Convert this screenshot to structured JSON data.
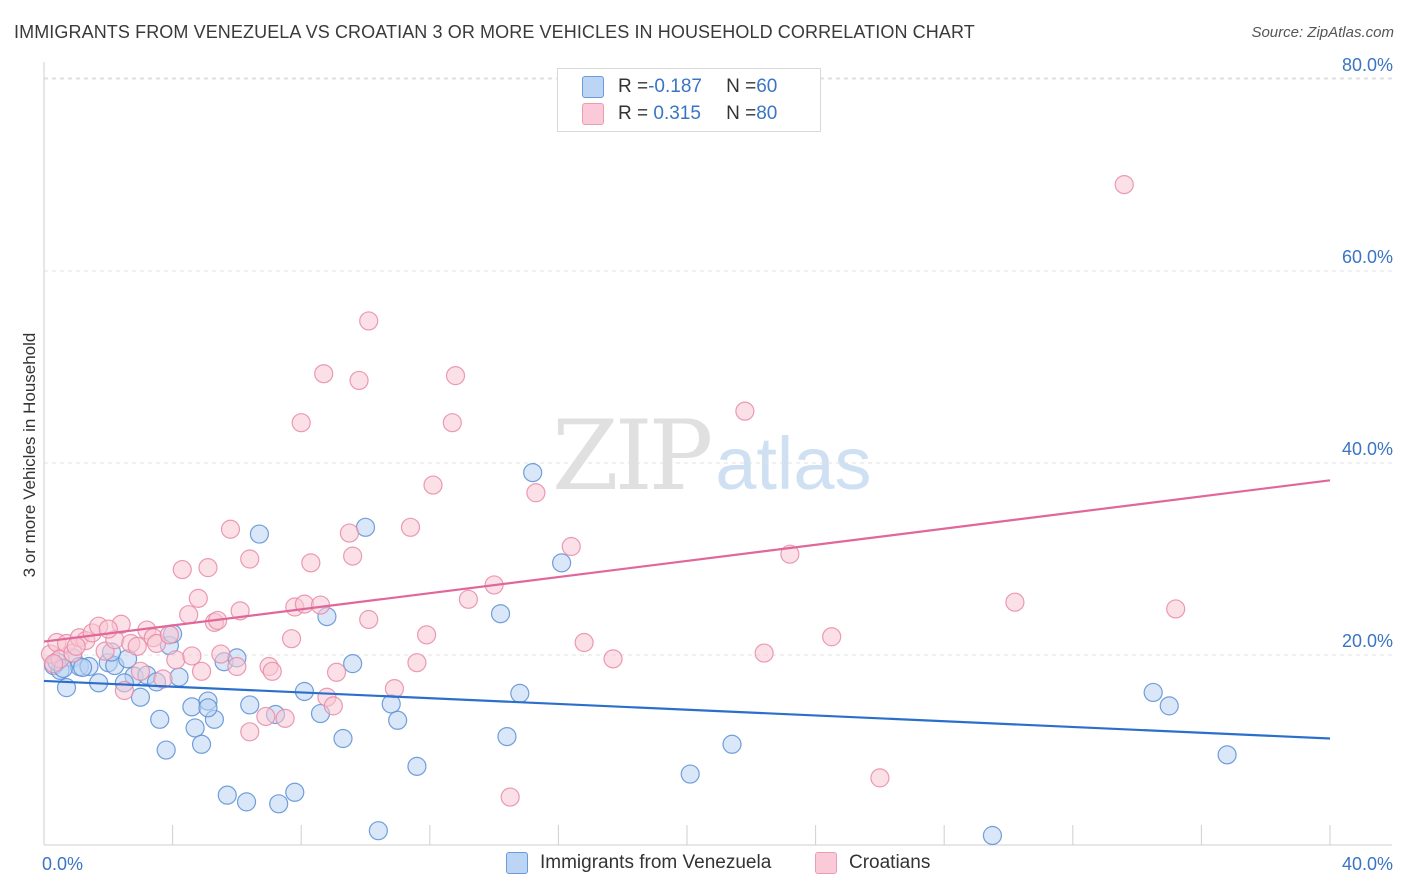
{
  "title": "IMMIGRANTS FROM VENEZUELA VS CROATIAN 3 OR MORE VEHICLES IN HOUSEHOLD CORRELATION CHART",
  "source": "Source: ZipAtlas.com",
  "watermark": {
    "zip": "ZIP",
    "atlas": "atlas"
  },
  "legend": [
    {
      "r_label": "R = ",
      "r_value": "-0.187",
      "n_label": "N = ",
      "n_value": "60",
      "color": "#a9c8f0"
    },
    {
      "r_label": "R = ",
      "r_value": " 0.315",
      "n_label": "N = ",
      "n_value": "80",
      "color": "#f6b9cb"
    }
  ],
  "colors": {
    "venezuela_fill": "#b9d3f3",
    "venezuela_stroke": "#5b8fd3",
    "venezuela_line": "#2b6fcc",
    "croatian_fill": "#f8c6d4",
    "croatian_stroke": "#e889a6",
    "croatian_line": "#e0679a",
    "tick_label": "#3a74c4",
    "grid": "#e0e0e0"
  },
  "chart_data": {
    "type": "scatter",
    "title": "IMMIGRANTS FROM VENEZUELA VS CROATIAN 3 OR MORE VEHICLES IN HOUSEHOLD CORRELATION CHART",
    "xlabel": "",
    "ylabel": "3 or more Vehicles in Household",
    "xlim": [
      0,
      40
    ],
    "ylim": [
      0,
      82
    ],
    "x_tick_labels": [
      {
        "value": 0,
        "label": "0.0%"
      },
      {
        "value": 40,
        "label": "40.0%"
      }
    ],
    "y_tick_labels": [
      {
        "value": 20,
        "label": "20.0%"
      },
      {
        "value": 40,
        "label": "40.0%"
      },
      {
        "value": 60,
        "label": "60.0%"
      },
      {
        "value": 80,
        "label": "80.0%"
      }
    ],
    "grid": true,
    "legend_position": "top-center",
    "series": [
      {
        "name": "Immigrants from Venezuela",
        "trend": [
          [
            0,
            17.3
          ],
          [
            40,
            11.3
          ]
        ],
        "points": [
          [
            0.3,
            18.9
          ],
          [
            0.5,
            18.4
          ],
          [
            0.7,
            16.6
          ],
          [
            0.9,
            19.7
          ],
          [
            1.1,
            18.8
          ],
          [
            1.4,
            18.8
          ],
          [
            1.7,
            17.1
          ],
          [
            2.0,
            19.2
          ],
          [
            2.2,
            18.9
          ],
          [
            2.6,
            19.6
          ],
          [
            2.8,
            17.8
          ],
          [
            3.0,
            15.6
          ],
          [
            3.2,
            17.9
          ],
          [
            3.5,
            17.2
          ],
          [
            3.6,
            13.3
          ],
          [
            3.8,
            10.1
          ],
          [
            3.9,
            21.0
          ],
          [
            4.0,
            22.2
          ],
          [
            4.2,
            17.7
          ],
          [
            4.6,
            14.6
          ],
          [
            4.7,
            12.4
          ],
          [
            4.9,
            10.7
          ],
          [
            5.1,
            15.2
          ],
          [
            5.3,
            13.3
          ],
          [
            5.6,
            19.3
          ],
          [
            5.7,
            5.4
          ],
          [
            6.0,
            19.7
          ],
          [
            6.3,
            4.7
          ],
          [
            6.4,
            14.8
          ],
          [
            6.7,
            32.6
          ],
          [
            7.2,
            13.8
          ],
          [
            7.3,
            4.5
          ],
          [
            7.8,
            5.7
          ],
          [
            8.1,
            16.2
          ],
          [
            8.6,
            13.9
          ],
          [
            8.8,
            24.0
          ],
          [
            9.3,
            11.3
          ],
          [
            9.6,
            19.1
          ],
          [
            10.0,
            33.3
          ],
          [
            10.4,
            1.7
          ],
          [
            10.8,
            14.9
          ],
          [
            11.0,
            13.2
          ],
          [
            11.6,
            8.4
          ],
          [
            14.2,
            24.3
          ],
          [
            14.4,
            11.5
          ],
          [
            14.8,
            16.0
          ],
          [
            15.2,
            39.0
          ],
          [
            16.1,
            29.6
          ],
          [
            20.1,
            7.6
          ],
          [
            21.4,
            10.7
          ],
          [
            29.5,
            1.2
          ],
          [
            34.5,
            16.1
          ],
          [
            35.0,
            14.7
          ],
          [
            36.8,
            9.6
          ],
          [
            2.1,
            20.3
          ],
          [
            0.4,
            19.3
          ],
          [
            1.2,
            18.7
          ],
          [
            2.5,
            17.1
          ],
          [
            0.6,
            18.6
          ],
          [
            5.1,
            14.5
          ]
        ]
      },
      {
        "name": "Croatians",
        "trend": [
          [
            0,
            21.4
          ],
          [
            40,
            38.2
          ]
        ],
        "points": [
          [
            0.2,
            20.1
          ],
          [
            0.4,
            21.3
          ],
          [
            0.5,
            19.6
          ],
          [
            0.7,
            21.2
          ],
          [
            0.9,
            20.2
          ],
          [
            1.1,
            21.8
          ],
          [
            1.3,
            21.5
          ],
          [
            1.5,
            22.3
          ],
          [
            1.7,
            23.0
          ],
          [
            1.9,
            20.4
          ],
          [
            2.2,
            21.6
          ],
          [
            2.4,
            23.2
          ],
          [
            2.5,
            16.3
          ],
          [
            2.7,
            21.2
          ],
          [
            2.9,
            20.9
          ],
          [
            3.0,
            18.3
          ],
          [
            3.2,
            22.6
          ],
          [
            3.4,
            21.8
          ],
          [
            3.5,
            21.2
          ],
          [
            3.7,
            17.5
          ],
          [
            3.9,
            22.1
          ],
          [
            4.1,
            19.5
          ],
          [
            4.3,
            28.9
          ],
          [
            4.5,
            24.2
          ],
          [
            4.6,
            19.9
          ],
          [
            4.8,
            25.9
          ],
          [
            4.9,
            18.3
          ],
          [
            5.1,
            29.1
          ],
          [
            5.3,
            23.4
          ],
          [
            5.5,
            20.1
          ],
          [
            5.8,
            33.1
          ],
          [
            6.0,
            18.8
          ],
          [
            6.1,
            24.6
          ],
          [
            6.4,
            30.0
          ],
          [
            6.4,
            12.0
          ],
          [
            6.9,
            13.6
          ],
          [
            7.0,
            18.8
          ],
          [
            7.1,
            18.3
          ],
          [
            7.5,
            13.4
          ],
          [
            7.7,
            21.7
          ],
          [
            7.8,
            25.0
          ],
          [
            8.0,
            44.2
          ],
          [
            8.1,
            25.3
          ],
          [
            8.3,
            29.6
          ],
          [
            8.6,
            25.2
          ],
          [
            8.7,
            49.3
          ],
          [
            8.8,
            15.6
          ],
          [
            9.0,
            14.7
          ],
          [
            9.1,
            18.2
          ],
          [
            9.5,
            32.7
          ],
          [
            9.6,
            30.3
          ],
          [
            9.8,
            48.6
          ],
          [
            10.1,
            23.7
          ],
          [
            10.1,
            54.8
          ],
          [
            10.9,
            16.5
          ],
          [
            11.4,
            33.3
          ],
          [
            11.6,
            19.2
          ],
          [
            11.9,
            22.1
          ],
          [
            12.1,
            37.7
          ],
          [
            12.7,
            44.2
          ],
          [
            12.8,
            49.1
          ],
          [
            13.2,
            25.8
          ],
          [
            14.0,
            27.3
          ],
          [
            14.5,
            5.2
          ],
          [
            15.3,
            36.9
          ],
          [
            16.4,
            31.3
          ],
          [
            16.8,
            21.3
          ],
          [
            17.7,
            19.6
          ],
          [
            21.8,
            45.4
          ],
          [
            22.4,
            20.2
          ],
          [
            23.2,
            30.5
          ],
          [
            24.5,
            21.9
          ],
          [
            26.0,
            7.2
          ],
          [
            30.2,
            25.5
          ],
          [
            33.6,
            69.0
          ],
          [
            35.2,
            24.8
          ],
          [
            2.0,
            22.7
          ],
          [
            1.0,
            20.9
          ],
          [
            0.3,
            19.1
          ],
          [
            5.4,
            23.6
          ]
        ]
      }
    ]
  }
}
